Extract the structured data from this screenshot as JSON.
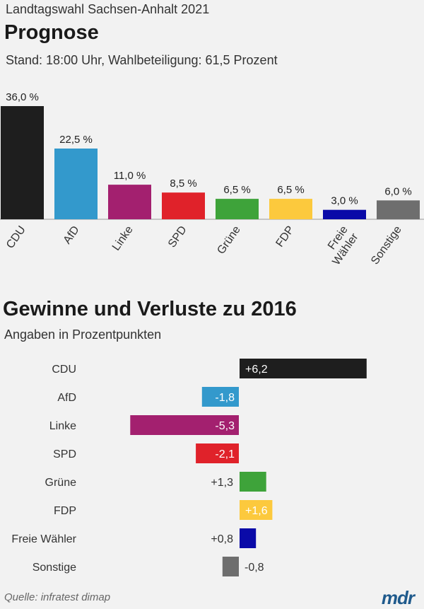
{
  "header": {
    "kicker": "Landtagswahl Sachsen-Anhalt 2021",
    "title": "Prognose",
    "subtitle": "Stand: 18:00 Uhr, Wahlbeteiligung: 61,5 Prozent"
  },
  "section2": {
    "title": "Gewinne und Verluste zu 2016",
    "subtitle": "Angaben in Prozentpunkten"
  },
  "footer": {
    "source": "Quelle: infratest dimap",
    "logo": "mdr"
  },
  "chart_data": [
    {
      "type": "bar",
      "categories": [
        "CDU",
        "AfD",
        "Linke",
        "SPD",
        "Grüne",
        "FDP",
        "Freie Wähler",
        "Sonstige"
      ],
      "values": [
        36.0,
        22.5,
        11.0,
        8.5,
        6.5,
        6.5,
        3.0,
        6.0
      ],
      "value_labels": [
        "36,0 %",
        "22,5 %",
        "11,0 %",
        "8,5 %",
        "6,5 %",
        "6,5 %",
        "3,0 %",
        "6,0 %"
      ],
      "colors": [
        "#1e1e1e",
        "#3399cc",
        "#a3206f",
        "#e0222a",
        "#3ea33a",
        "#fcc93d",
        "#0a0aa8",
        "#6e6e6e"
      ],
      "ylim": [
        0,
        36.0
      ],
      "grid": false,
      "xlabel": "",
      "ylabel": ""
    },
    {
      "type": "bar",
      "orientation": "horizontal",
      "categories": [
        "CDU",
        "AfD",
        "Linke",
        "SPD",
        "Grüne",
        "FDP",
        "Freie Wähler",
        "Sonstige"
      ],
      "values": [
        6.2,
        -1.8,
        -5.3,
        -2.1,
        1.3,
        1.6,
        0.8,
        -0.8
      ],
      "value_labels": [
        "+6,2",
        "-1,8",
        "-5,3",
        "-2,1",
        "+1,3",
        "+1,6",
        "+0,8",
        "-0,8"
      ],
      "colors": [
        "#1e1e1e",
        "#3399cc",
        "#a3206f",
        "#e0222a",
        "#3ea33a",
        "#fcc93d",
        "#0a0aa8",
        "#6e6e6e"
      ],
      "xlim": [
        -5.3,
        6.2
      ],
      "grid": false,
      "xlabel": "",
      "ylabel": ""
    }
  ]
}
